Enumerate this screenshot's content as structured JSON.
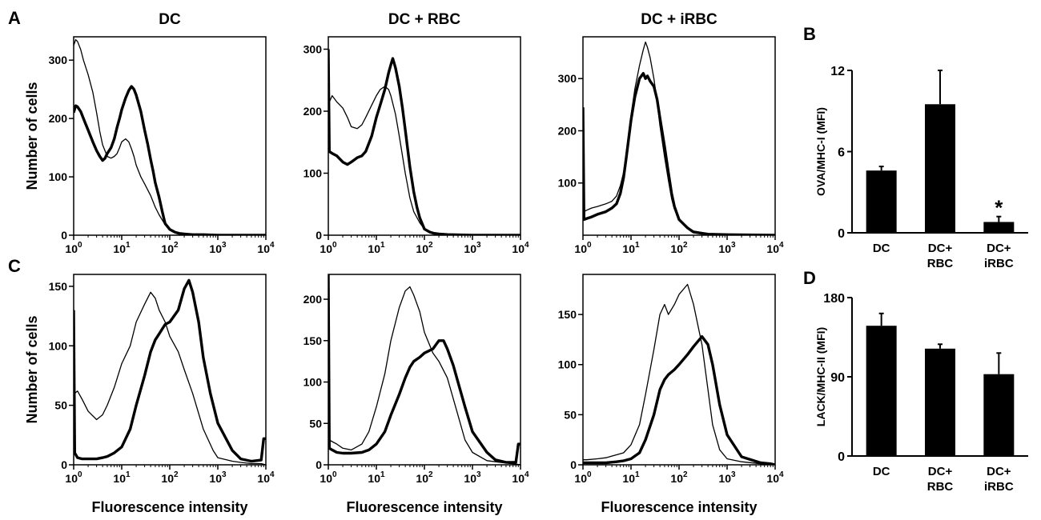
{
  "panel_letters": [
    "A",
    "B",
    "C",
    "D"
  ],
  "column_titles": [
    "DC",
    "DC + RBC",
    "DC + iRBC"
  ],
  "chart_data": [
    {
      "type": "line",
      "id": "A-DC",
      "panel": "A",
      "title": "DC",
      "xscale": "log",
      "xlim": [
        1,
        10000
      ],
      "ylim": [
        0,
        340
      ],
      "xticks": [
        1,
        10,
        100,
        1000,
        10000
      ],
      "yticks": [
        0,
        100,
        200,
        300
      ],
      "ylabel": "Number of cells",
      "xlabel": "",
      "series": [
        {
          "style": "thin",
          "x": [
            1,
            1.1,
            1.2,
            1.4,
            1.6,
            2,
            2.5,
            3,
            3.5,
            4,
            5,
            6,
            7,
            8,
            9,
            10,
            12,
            14,
            16,
            18,
            20,
            25,
            30,
            40,
            50,
            60,
            80,
            100,
            130,
            160,
            200,
            300,
            500,
            1000,
            3000,
            10000
          ],
          "y": [
            325,
            335,
            332,
            318,
            300,
            275,
            245,
            210,
            178,
            155,
            135,
            132,
            135,
            140,
            150,
            160,
            165,
            160,
            148,
            135,
            120,
            100,
            88,
            68,
            48,
            35,
            18,
            10,
            5,
            3,
            2,
            1,
            1,
            0,
            0,
            0
          ]
        },
        {
          "style": "thick",
          "x": [
            1,
            1.1,
            1.2,
            1.4,
            1.6,
            2,
            2.5,
            3,
            3.5,
            4,
            4.5,
            5,
            6,
            7,
            8,
            9,
            10,
            12,
            14,
            16,
            18,
            20,
            25,
            30,
            35,
            40,
            45,
            50,
            60,
            70,
            80,
            100,
            130,
            160,
            200,
            300,
            500,
            1000,
            3000,
            10000
          ],
          "y": [
            210,
            222,
            220,
            212,
            200,
            180,
            160,
            145,
            135,
            128,
            132,
            140,
            150,
            165,
            185,
            200,
            215,
            235,
            248,
            255,
            250,
            240,
            212,
            180,
            155,
            130,
            110,
            90,
            65,
            40,
            20,
            10,
            5,
            3,
            2,
            1,
            1,
            0,
            0,
            0
          ]
        }
      ]
    },
    {
      "type": "line",
      "id": "A-RBC",
      "panel": "A",
      "title": "DC + RBC",
      "xscale": "log",
      "xlim": [
        1,
        10000
      ],
      "ylim": [
        0,
        320
      ],
      "xticks": [
        1,
        10,
        100,
        1000,
        10000
      ],
      "yticks": [
        0,
        100,
        200,
        300
      ],
      "ylabel": "",
      "xlabel": "",
      "series": [
        {
          "style": "thin",
          "x": [
            1,
            1.05,
            1.2,
            1.5,
            2,
            2.5,
            3,
            4,
            5,
            6,
            8,
            10,
            12,
            15,
            18,
            20,
            25,
            30,
            40,
            50,
            60,
            80,
            100,
            150,
            200,
            300,
            1000,
            10000
          ],
          "y": [
            300,
            215,
            225,
            215,
            205,
            190,
            175,
            172,
            178,
            190,
            210,
            225,
            235,
            240,
            235,
            225,
            195,
            160,
            100,
            60,
            38,
            20,
            10,
            4,
            2,
            1,
            0,
            0
          ]
        },
        {
          "style": "thick",
          "x": [
            1,
            1.05,
            1.2,
            1.5,
            2,
            2.5,
            3,
            4,
            5,
            6,
            8,
            10,
            12,
            15,
            18,
            20,
            22,
            25,
            30,
            35,
            40,
            50,
            60,
            70,
            80,
            100,
            130,
            160,
            200,
            300,
            1000,
            10000
          ],
          "y": [
            300,
            135,
            132,
            128,
            118,
            114,
            118,
            125,
            128,
            135,
            160,
            190,
            210,
            235,
            262,
            275,
            285,
            270,
            240,
            205,
            170,
            110,
            70,
            45,
            28,
            10,
            5,
            3,
            2,
            1,
            0,
            0
          ]
        }
      ]
    },
    {
      "type": "line",
      "id": "A-iRBC",
      "panel": "A",
      "title": "DC + iRBC",
      "xscale": "log",
      "xlim": [
        1,
        10000
      ],
      "ylim": [
        0,
        380
      ],
      "xticks": [
        1,
        10,
        100,
        1000,
        10000
      ],
      "yticks": [
        100,
        200,
        300
      ],
      "ylabel": "",
      "xlabel": "",
      "series": [
        {
          "style": "thin",
          "x": [
            1,
            1.05,
            1.2,
            1.5,
            2,
            3,
            4,
            5,
            6,
            7,
            8,
            10,
            12,
            15,
            18,
            20,
            22,
            25,
            30,
            35,
            40,
            50,
            60,
            70,
            80,
            100,
            150,
            200,
            400,
            1000,
            10000
          ],
          "y": [
            230,
            45,
            48,
            52,
            55,
            60,
            65,
            75,
            95,
            120,
            160,
            230,
            280,
            325,
            355,
            370,
            360,
            340,
            300,
            255,
            210,
            150,
            105,
            70,
            50,
            30,
            15,
            8,
            3,
            1,
            0
          ]
        },
        {
          "style": "thick",
          "x": [
            1,
            1.05,
            1.2,
            1.5,
            2,
            3,
            4,
            5,
            6,
            7,
            8,
            10,
            12,
            15,
            18,
            20,
            22,
            25,
            30,
            35,
            40,
            50,
            60,
            70,
            80,
            100,
            150,
            200,
            400,
            1000,
            10000
          ],
          "y": [
            245,
            30,
            32,
            35,
            40,
            45,
            52,
            60,
            80,
            110,
            150,
            220,
            265,
            300,
            310,
            300,
            305,
            295,
            285,
            260,
            225,
            170,
            120,
            80,
            55,
            30,
            14,
            6,
            2,
            1,
            0
          ]
        }
      ]
    },
    {
      "type": "bar",
      "id": "B",
      "panel": "B",
      "categories": [
        "DC",
        "DC+\nRBC",
        "DC+\niRBC"
      ],
      "values": [
        4.6,
        9.5,
        0.8
      ],
      "errors": [
        0.3,
        2.5,
        0.4
      ],
      "ylim": [
        0,
        12
      ],
      "yticks": [
        0,
        6,
        12
      ],
      "ylabel": "OVA/MHC-I (MFI)",
      "annotations": [
        {
          "text": "*",
          "category": 2
        }
      ]
    },
    {
      "type": "line",
      "id": "C-DC",
      "panel": "C",
      "title": "",
      "xscale": "log",
      "xlim": [
        1,
        10000
      ],
      "ylim": [
        0,
        160
      ],
      "xticks": [
        1,
        10,
        100,
        1000,
        10000
      ],
      "yticks": [
        0,
        50,
        100,
        150
      ],
      "ylabel": "Number of cells",
      "xlabel": "Fluorescence intensity",
      "series": [
        {
          "style": "thin",
          "x": [
            1,
            1.05,
            1.2,
            1.5,
            2,
            3,
            4,
            5,
            7,
            10,
            15,
            20,
            30,
            40,
            50,
            60,
            80,
            100,
            150,
            200,
            300,
            500,
            800,
            1000,
            2000,
            3000,
            5000,
            8000,
            10000
          ],
          "y": [
            130,
            60,
            62,
            55,
            45,
            38,
            42,
            50,
            65,
            85,
            100,
            120,
            135,
            145,
            140,
            130,
            120,
            108,
            95,
            80,
            60,
            30,
            12,
            6,
            3,
            2,
            1,
            1,
            0
          ]
        },
        {
          "style": "thick",
          "x": [
            1,
            1.05,
            1.2,
            1.5,
            2,
            3,
            4,
            5,
            7,
            10,
            15,
            20,
            30,
            40,
            50,
            60,
            80,
            100,
            150,
            200,
            250,
            300,
            400,
            500,
            700,
            1000,
            2000,
            3000,
            5000,
            8000,
            9000,
            10000
          ],
          "y": [
            130,
            10,
            6,
            5,
            5,
            5,
            6,
            7,
            10,
            15,
            30,
            50,
            75,
            95,
            105,
            110,
            118,
            120,
            130,
            148,
            155,
            145,
            120,
            90,
            60,
            35,
            12,
            5,
            3,
            4,
            22,
            22
          ]
        }
      ]
    },
    {
      "type": "line",
      "id": "C-RBC",
      "panel": "C",
      "title": "",
      "xscale": "log",
      "xlim": [
        1,
        10000
      ],
      "ylim": [
        0,
        230
      ],
      "xticks": [
        1,
        10,
        100,
        1000,
        10000
      ],
      "yticks": [
        0,
        50,
        100,
        150,
        200
      ],
      "ylabel": "",
      "xlabel": "Fluorescence intensity",
      "series": [
        {
          "style": "thin",
          "x": [
            1,
            1.05,
            1.2,
            1.5,
            2,
            3,
            5,
            7,
            10,
            15,
            20,
            30,
            40,
            50,
            60,
            80,
            100,
            150,
            200,
            300,
            500,
            700,
            1000,
            2000,
            5000,
            8000,
            10000
          ],
          "y": [
            230,
            30,
            28,
            25,
            20,
            18,
            25,
            40,
            70,
            110,
            150,
            190,
            210,
            215,
            205,
            185,
            160,
            135,
            125,
            105,
            60,
            30,
            15,
            5,
            2,
            1,
            0
          ]
        },
        {
          "style": "thick",
          "x": [
            1,
            1.05,
            1.2,
            1.5,
            2,
            3,
            5,
            7,
            10,
            15,
            20,
            30,
            40,
            50,
            60,
            80,
            100,
            150,
            200,
            250,
            300,
            400,
            500,
            700,
            1000,
            2000,
            3000,
            5000,
            8000,
            9000,
            10000
          ],
          "y": [
            230,
            20,
            18,
            15,
            14,
            14,
            15,
            18,
            25,
            40,
            60,
            85,
            105,
            118,
            125,
            130,
            135,
            140,
            150,
            150,
            140,
            120,
            100,
            70,
            40,
            15,
            6,
            3,
            3,
            25,
            25
          ]
        }
      ]
    },
    {
      "type": "line",
      "id": "C-iRBC",
      "panel": "C",
      "title": "",
      "xscale": "log",
      "xlim": [
        1,
        10000
      ],
      "ylim": [
        0,
        190
      ],
      "xticks": [
        1,
        10,
        100,
        1000,
        10000
      ],
      "yticks": [
        0,
        50,
        100,
        150
      ],
      "ylabel": "",
      "xlabel": "Fluorescence intensity",
      "series": [
        {
          "style": "thin",
          "x": [
            1,
            1.2,
            2,
            3,
            5,
            7,
            10,
            15,
            20,
            30,
            40,
            50,
            60,
            80,
            100,
            150,
            200,
            300,
            400,
            500,
            700,
            1000,
            2000,
            5000,
            10000
          ],
          "y": [
            5,
            5,
            6,
            7,
            10,
            12,
            20,
            40,
            70,
            115,
            150,
            160,
            150,
            160,
            170,
            180,
            160,
            120,
            75,
            40,
            15,
            6,
            3,
            1,
            0
          ]
        },
        {
          "style": "thick",
          "x": [
            1,
            1.2,
            2,
            3,
            5,
            7,
            10,
            15,
            20,
            30,
            40,
            50,
            60,
            80,
            100,
            150,
            200,
            300,
            400,
            500,
            700,
            1000,
            2000,
            5000,
            8000,
            10000
          ],
          "y": [
            2,
            2,
            2,
            2,
            3,
            4,
            6,
            12,
            25,
            50,
            75,
            85,
            90,
            95,
            100,
            110,
            118,
            128,
            120,
            100,
            60,
            30,
            8,
            2,
            1,
            0
          ]
        }
      ]
    },
    {
      "type": "bar",
      "id": "D",
      "panel": "D",
      "categories": [
        "DC",
        "DC+\nRBC",
        "DC+\niRBC"
      ],
      "values": [
        148,
        122,
        93
      ],
      "errors": [
        14,
        5,
        24
      ],
      "ylim": [
        0,
        180
      ],
      "yticks": [
        0,
        90,
        180
      ],
      "ylabel": "LACK/MHC-II (MFI)",
      "annotations": []
    }
  ]
}
